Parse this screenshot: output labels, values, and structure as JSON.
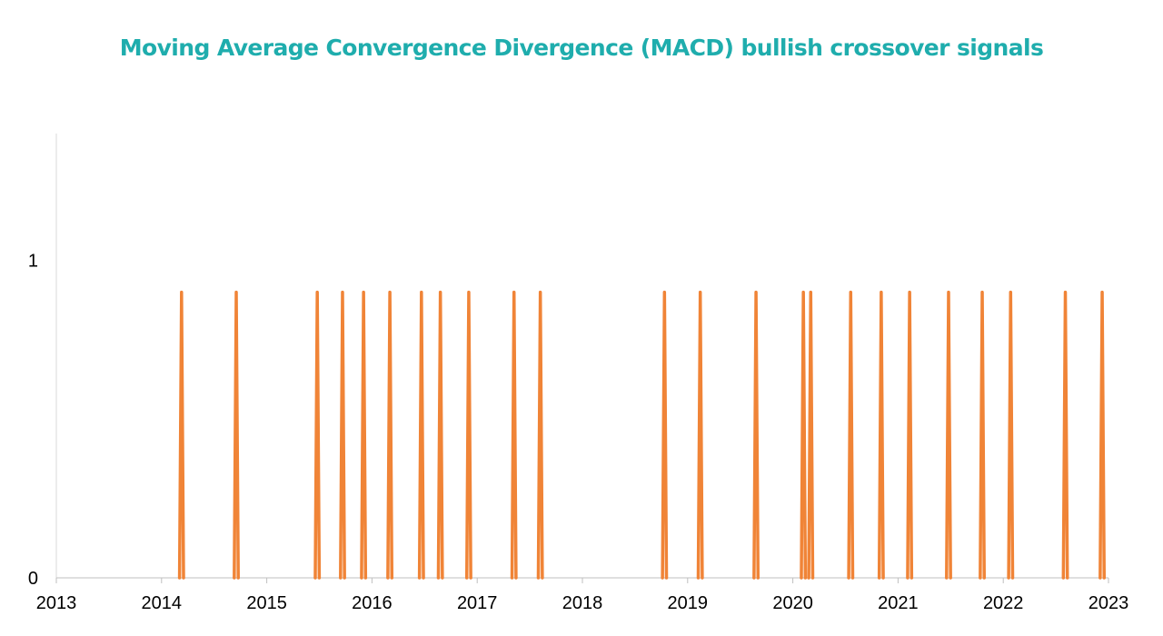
{
  "chart_data": {
    "type": "line",
    "title": "Moving Average Convergence Divergence (MACD) bullish crossover signals",
    "xlabel": "",
    "ylabel": "",
    "x_tick_labels": [
      "2013",
      "2014",
      "2015",
      "2016",
      "2017",
      "2018",
      "2019",
      "2020",
      "2021",
      "2022",
      "2023"
    ],
    "y_tick_labels": [
      "0",
      "1"
    ],
    "xlim": [
      2013.0,
      2023.0
    ],
    "ylim": [
      0,
      1.4
    ],
    "grid": false,
    "legend": "none",
    "series": [
      {
        "color": "#f08437",
        "signal_value": 0.9,
        "baseline_value": 0,
        "signal_dates": [
          2014.19,
          2014.71,
          2015.48,
          2015.72,
          2015.92,
          2016.17,
          2016.47,
          2016.65,
          2016.92,
          2017.35,
          2017.6,
          2018.78,
          2019.12,
          2019.65,
          2020.1,
          2020.17,
          2020.55,
          2020.84,
          2021.11,
          2021.48,
          2021.8,
          2022.07,
          2022.59,
          2022.94
        ]
      }
    ]
  }
}
